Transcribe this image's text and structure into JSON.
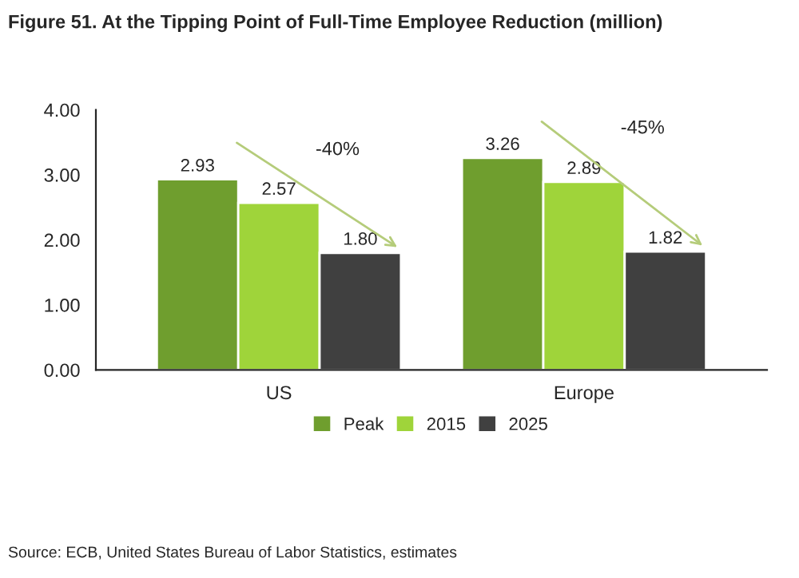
{
  "chart_data": {
    "type": "bar",
    "title": "Figure 51. At the Tipping Point of Full-Time Employee Reduction (million)",
    "categories": [
      "US",
      "Europe"
    ],
    "series": [
      {
        "name": "Peak",
        "color": "#6f9e2e",
        "values": [
          2.93,
          3.26
        ],
        "value_labels": [
          "2.93",
          "3.26"
        ]
      },
      {
        "name": "2015",
        "color": "#9fd43a",
        "values": [
          2.57,
          2.89
        ],
        "value_labels": [
          "2.57",
          "2.89"
        ]
      },
      {
        "name": "2025",
        "color": "#404040",
        "values": [
          1.8,
          1.82
        ],
        "value_labels": [
          "1.80",
          "1.82"
        ]
      }
    ],
    "ylim": [
      0,
      4
    ],
    "yticks": [
      {
        "value": 0,
        "label": "0.00"
      },
      {
        "value": 1,
        "label": "1.00"
      },
      {
        "value": 2,
        "label": "2.00"
      },
      {
        "value": 3,
        "label": "3.00"
      },
      {
        "value": 4,
        "label": "4.00"
      }
    ],
    "legend": "bottom",
    "grid": false,
    "annotations": [
      "-40%",
      "-45%",
      "Source: ECB, United States Bureau of Labor Statistics, estimates"
    ]
  }
}
